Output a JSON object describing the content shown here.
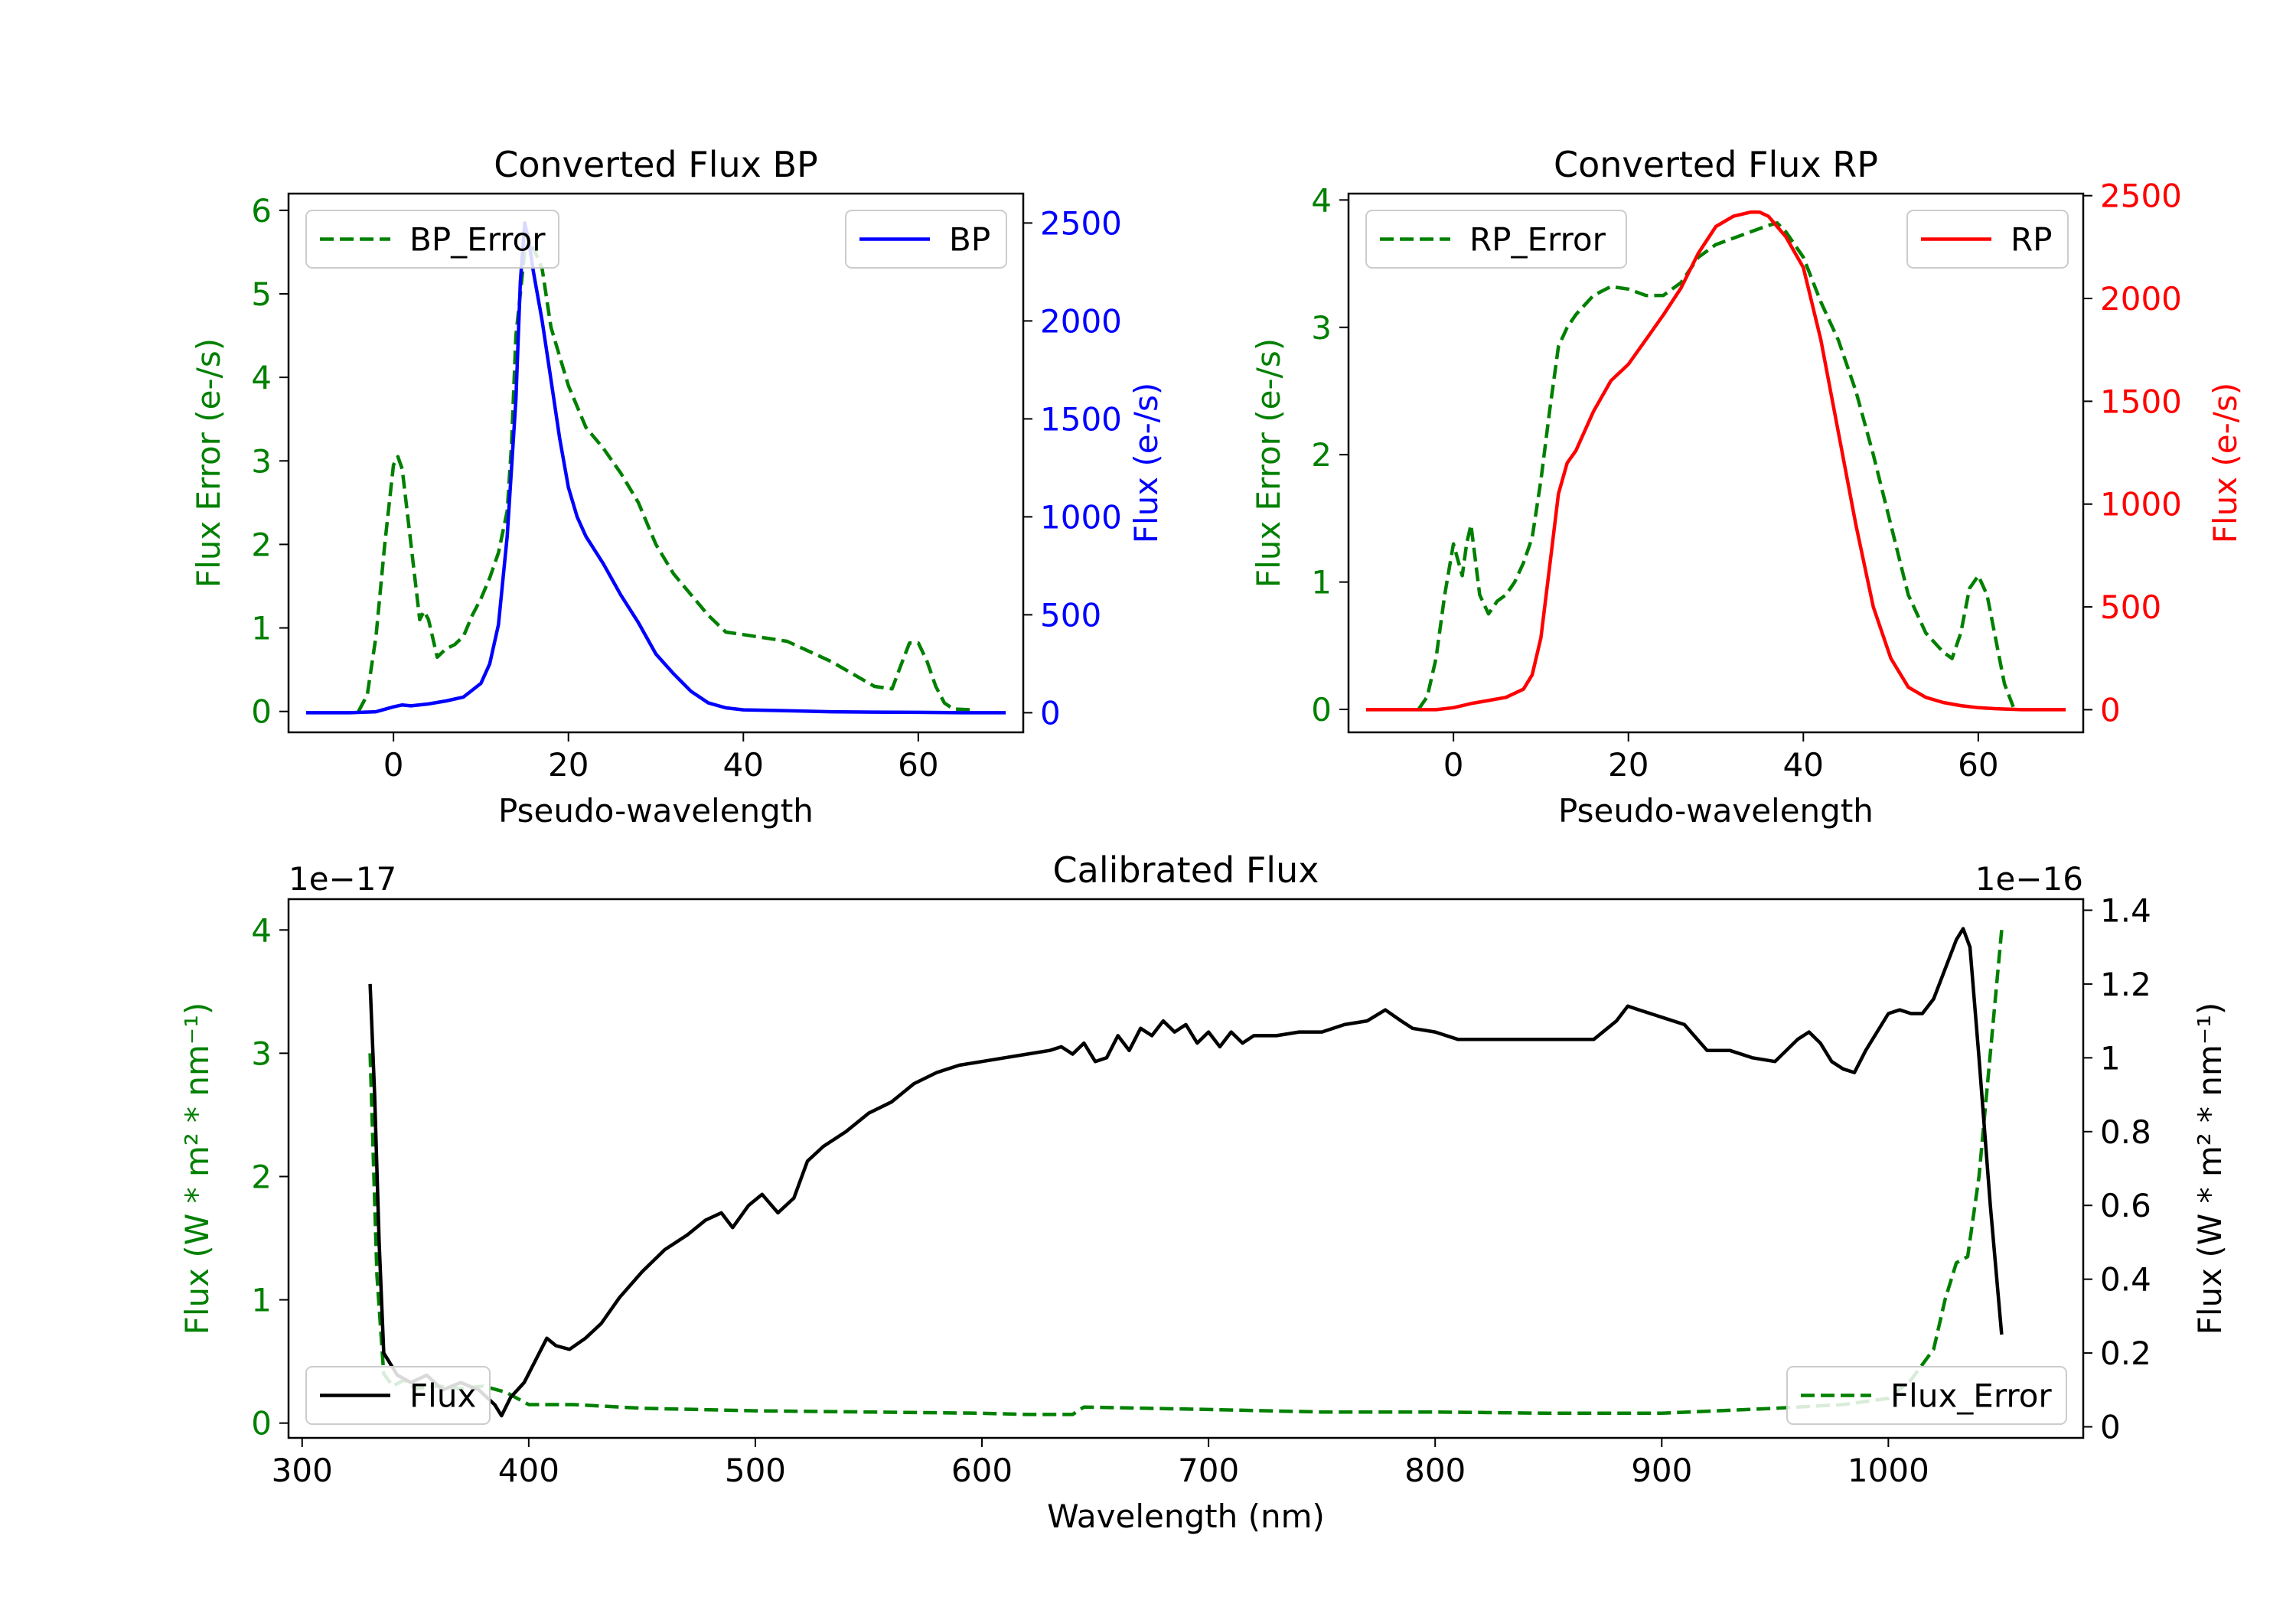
{
  "chart_data": [
    {
      "type": "line",
      "title": "Converted Flux BP",
      "xlabel": "Pseudo-wavelength",
      "ylabel_left": "Flux Error (e-/s)",
      "ylabel_right": "Flux (e-/s)",
      "xlim": [
        -12,
        72
      ],
      "ylim_left": [
        -0.25,
        6.2
      ],
      "ylim_right": [
        -100,
        2650
      ],
      "xticks": [
        0,
        20,
        40,
        60
      ],
      "yticks_left": [
        0,
        1,
        2,
        3,
        4,
        5,
        6
      ],
      "yticks_right": [
        0,
        500,
        1000,
        1500,
        2000,
        2500
      ],
      "left_color": "#008000",
      "right_color": "#0000ff",
      "legend_left": {
        "label": "BP_Error",
        "placement": "upper left"
      },
      "legend_right": {
        "label": "BP",
        "placement": "upper right"
      },
      "series": [
        {
          "name": "BP_Error",
          "axis": "left",
          "color": "#008000",
          "style": "dashed",
          "x": [
            -4,
            -3,
            -2,
            -1,
            0,
            0.5,
            1,
            2,
            3,
            3.5,
            4,
            5,
            6,
            7,
            8,
            9,
            10,
            11,
            12,
            13,
            13.5,
            14,
            15,
            16,
            17,
            18,
            20,
            22,
            24,
            26,
            28,
            30,
            32,
            34,
            36,
            38,
            40,
            45,
            50,
            55,
            57,
            58,
            59,
            60,
            61,
            62,
            63,
            64,
            66
          ],
          "y": [
            0,
            0.2,
            0.9,
            2.0,
            2.95,
            3.05,
            2.9,
            2.0,
            1.1,
            1.2,
            1.1,
            0.65,
            0.75,
            0.8,
            0.9,
            1.15,
            1.35,
            1.6,
            1.9,
            2.4,
            3.2,
            4.5,
            5.5,
            5.55,
            5.3,
            4.6,
            3.9,
            3.4,
            3.15,
            2.85,
            2.5,
            2.0,
            1.65,
            1.4,
            1.15,
            0.95,
            0.92,
            0.84,
            0.6,
            0.3,
            0.27,
            0.55,
            0.82,
            0.82,
            0.6,
            0.3,
            0.1,
            0.03,
            0.02
          ]
        },
        {
          "name": "BP",
          "axis": "right",
          "color": "#0000ff",
          "style": "solid",
          "x": [
            -10,
            -5,
            -2,
            0,
            1,
            2,
            4,
            6,
            8,
            10,
            11,
            12,
            13,
            14,
            14.5,
            15,
            15.5,
            16,
            17,
            18,
            19,
            20,
            21,
            22,
            24,
            26,
            28,
            30,
            32,
            34,
            36,
            38,
            40,
            45,
            50,
            55,
            60,
            65,
            70
          ],
          "y": [
            0,
            0,
            5,
            30,
            40,
            35,
            45,
            60,
            80,
            150,
            250,
            450,
            900,
            1600,
            2200,
            2500,
            2400,
            2250,
            2000,
            1700,
            1400,
            1150,
            1000,
            900,
            760,
            600,
            460,
            300,
            200,
            110,
            50,
            25,
            15,
            10,
            5,
            3,
            2,
            0,
            0
          ]
        }
      ]
    },
    {
      "type": "line",
      "title": "Converted Flux RP",
      "xlabel": "Pseudo-wavelength",
      "ylabel_left": "Flux Error (e-/s)",
      "ylabel_right": "Flux (e-/s)",
      "xlim": [
        -12,
        72
      ],
      "ylim_left": [
        -0.18,
        4.05
      ],
      "ylim_right": [
        -110,
        2510
      ],
      "xticks": [
        0,
        20,
        40,
        60
      ],
      "yticks_left": [
        0,
        1,
        2,
        3,
        4
      ],
      "yticks_right": [
        0,
        500,
        1000,
        1500,
        2000,
        2500
      ],
      "left_color": "#008000",
      "right_color": "#ff0000",
      "legend_left": {
        "label": "RP_Error",
        "placement": "upper left"
      },
      "legend_right": {
        "label": "RP",
        "placement": "upper right"
      },
      "series": [
        {
          "name": "RP_Error",
          "axis": "left",
          "color": "#008000",
          "style": "dashed",
          "x": [
            -4,
            -3,
            -2,
            -1,
            0,
            1,
            1.5,
            2,
            3,
            4,
            5,
            6,
            7,
            8,
            9,
            10,
            11,
            12,
            13,
            14,
            16,
            18,
            20,
            22,
            24,
            26,
            28,
            30,
            32,
            34,
            36,
            37,
            38,
            40,
            42,
            44,
            46,
            48,
            50,
            52,
            54,
            56,
            57,
            58,
            59,
            60,
            61,
            62,
            63,
            64
          ],
          "y": [
            0,
            0.1,
            0.4,
            0.9,
            1.3,
            1.05,
            1.3,
            1.45,
            0.9,
            0.75,
            0.85,
            0.9,
            1.0,
            1.15,
            1.35,
            1.8,
            2.35,
            2.85,
            3.0,
            3.1,
            3.25,
            3.32,
            3.3,
            3.25,
            3.25,
            3.35,
            3.55,
            3.65,
            3.7,
            3.75,
            3.8,
            3.82,
            3.75,
            3.55,
            3.2,
            2.9,
            2.5,
            2.0,
            1.45,
            0.9,
            0.6,
            0.45,
            0.4,
            0.6,
            0.95,
            1.05,
            0.9,
            0.55,
            0.2,
            0.02
          ]
        },
        {
          "name": "RP",
          "axis": "right",
          "color": "#ff0000",
          "style": "solid",
          "x": [
            -10,
            -2,
            0,
            2,
            4,
            6,
            8,
            9,
            10,
            11,
            12,
            13,
            14,
            16,
            18,
            20,
            22,
            24,
            26,
            28,
            30,
            32,
            34,
            35,
            36,
            37,
            38,
            40,
            42,
            44,
            46,
            48,
            50,
            52,
            54,
            56,
            58,
            60,
            62,
            65,
            70
          ],
          "y": [
            0,
            0,
            10,
            30,
            45,
            60,
            100,
            170,
            350,
            700,
            1050,
            1200,
            1260,
            1450,
            1600,
            1680,
            1800,
            1920,
            2050,
            2220,
            2350,
            2400,
            2420,
            2420,
            2400,
            2350,
            2300,
            2150,
            1800,
            1350,
            900,
            500,
            250,
            110,
            60,
            35,
            20,
            10,
            5,
            0,
            0
          ]
        }
      ]
    },
    {
      "type": "line",
      "title": "Calibrated Flux",
      "xlabel": "Wavelength (nm)",
      "ylabel_left": "Flux (W * m² * nm⁻¹)",
      "ylabel_right": "Flux (W * m² * nm⁻¹)",
      "offset_left": "1e−17",
      "offset_right": "1e−16",
      "xlim": [
        294,
        1086
      ],
      "ylim_left": [
        -0.12,
        4.25
      ],
      "ylim_right": [
        -0.03,
        1.43
      ],
      "xticks": [
        300,
        400,
        500,
        600,
        700,
        800,
        900,
        1000
      ],
      "yticks_left": [
        0,
        1,
        2,
        3,
        4
      ],
      "yticks_right": [
        0.0,
        0.2,
        0.4,
        0.6,
        0.8,
        1.0,
        1.2,
        1.4
      ],
      "left_color": "#008000",
      "right_color": "#000000",
      "legend_left": {
        "label": "Flux",
        "placement": "lower left"
      },
      "legend_right": {
        "label": "Flux_Error",
        "placement": "lower right"
      },
      "series": [
        {
          "name": "Flux_Error",
          "axis": "left",
          "color": "#008000",
          "style": "dashed",
          "x": [
            330,
            333,
            336,
            340,
            345,
            350,
            360,
            370,
            380,
            390,
            400,
            420,
            450,
            500,
            550,
            600,
            620,
            640,
            645,
            700,
            750,
            800,
            850,
            900,
            950,
            980,
            1000,
            1010,
            1020,
            1025,
            1030,
            1035,
            1040,
            1045,
            1050
          ],
          "y": [
            3.0,
            1.2,
            0.4,
            0.3,
            0.35,
            0.28,
            0.3,
            0.28,
            0.3,
            0.25,
            0.15,
            0.15,
            0.12,
            0.1,
            0.09,
            0.08,
            0.07,
            0.07,
            0.13,
            0.11,
            0.09,
            0.09,
            0.08,
            0.08,
            0.12,
            0.15,
            0.2,
            0.35,
            0.6,
            1.0,
            1.3,
            1.35,
            2.0,
            3.0,
            4.0
          ]
        },
        {
          "name": "Flux",
          "axis": "right",
          "color": "#000000",
          "style": "solid",
          "x": [
            330,
            332,
            334,
            336,
            338,
            342,
            348,
            355,
            362,
            370,
            378,
            385,
            388,
            392,
            398,
            403,
            408,
            412,
            418,
            425,
            432,
            440,
            450,
            460,
            470,
            478,
            485,
            490,
            497,
            503,
            510,
            517,
            523,
            530,
            540,
            550,
            560,
            570,
            580,
            590,
            600,
            610,
            620,
            630,
            635,
            640,
            645,
            650,
            655,
            660,
            665,
            670,
            675,
            680,
            685,
            690,
            695,
            700,
            705,
            710,
            715,
            720,
            730,
            740,
            750,
            760,
            770,
            778,
            785,
            790,
            800,
            810,
            820,
            840,
            860,
            870,
            880,
            885,
            890,
            900,
            910,
            920,
            930,
            940,
            950,
            960,
            965,
            970,
            975,
            980,
            985,
            990,
            1000,
            1005,
            1010,
            1015,
            1020,
            1025,
            1030,
            1033,
            1036,
            1040,
            1045,
            1050
          ],
          "y": [
            1.2,
            0.9,
            0.5,
            0.2,
            0.18,
            0.14,
            0.12,
            0.14,
            0.1,
            0.12,
            0.1,
            0.06,
            0.03,
            0.08,
            0.12,
            0.18,
            0.24,
            0.22,
            0.21,
            0.24,
            0.28,
            0.35,
            0.42,
            0.48,
            0.52,
            0.56,
            0.58,
            0.54,
            0.6,
            0.63,
            0.58,
            0.62,
            0.72,
            0.76,
            0.8,
            0.85,
            0.88,
            0.93,
            0.96,
            0.98,
            0.99,
            1.0,
            1.01,
            1.02,
            1.03,
            1.01,
            1.04,
            0.99,
            1.0,
            1.06,
            1.02,
            1.08,
            1.06,
            1.1,
            1.07,
            1.09,
            1.04,
            1.07,
            1.03,
            1.07,
            1.04,
            1.06,
            1.06,
            1.07,
            1.07,
            1.09,
            1.1,
            1.13,
            1.1,
            1.08,
            1.07,
            1.05,
            1.05,
            1.05,
            1.05,
            1.05,
            1.1,
            1.14,
            1.13,
            1.11,
            1.09,
            1.02,
            1.02,
            1.0,
            0.99,
            1.05,
            1.07,
            1.04,
            0.99,
            0.97,
            0.96,
            1.02,
            1.12,
            1.13,
            1.12,
            1.12,
            1.16,
            1.24,
            1.32,
            1.35,
            1.3,
            1.0,
            0.6,
            0.25
          ]
        }
      ]
    }
  ]
}
